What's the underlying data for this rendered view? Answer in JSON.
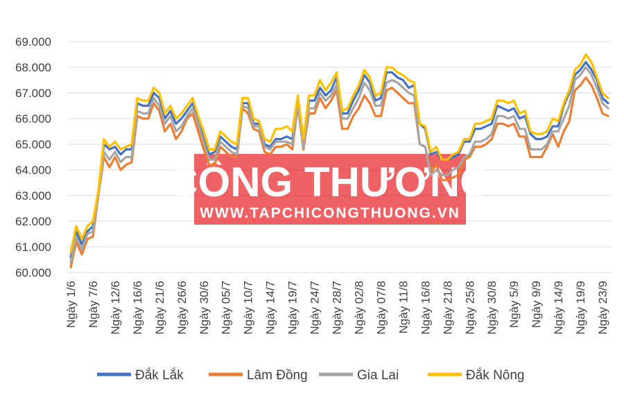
{
  "chart_data": {
    "type": "line",
    "title": "",
    "xlabel": "",
    "ylabel": "",
    "ylim": [
      60000,
      69000
    ],
    "y_ticks": [
      "60.000",
      "61.000",
      "62.000",
      "63.000",
      "64.000",
      "65.000",
      "66.000",
      "67.000",
      "68.000",
      "69.000"
    ],
    "y_tick_values": [
      60000,
      61000,
      62000,
      63000,
      64000,
      65000,
      66000,
      67000,
      68000,
      69000
    ],
    "x_tick_labels": [
      "Ngày 1/6",
      "Ngày 7/6",
      "Ngày 12/6",
      "Ngày 16/6",
      "Ngày 21/6",
      "Ngày 26/6",
      "Ngày 30/6",
      "Ngày 05/7",
      "Ngày 10/7",
      "Ngày 14/7",
      "Ngày 19/7",
      "Ngày 24/7",
      "Ngày 28/7",
      "Ngày 02/8",
      "Ngày 07/8",
      "Ngày 11/8",
      "Ngày 16/8",
      "Ngày 21/8",
      "Ngày 25/8",
      "Ngày 30/8",
      "Ngày 5/9",
      "Ngày 9/9",
      "Ngày 14/9",
      "Ngày 19/9",
      "Ngày 23/9"
    ],
    "x_tick_index": [
      0,
      4,
      8,
      12,
      16,
      20,
      24,
      28,
      32,
      36,
      40,
      44,
      48,
      52,
      56,
      60,
      64,
      68,
      72,
      76,
      80,
      84,
      88,
      92,
      96
    ],
    "grid": true,
    "legend_position": "bottom",
    "series": [
      {
        "name": "Đắk Lắk",
        "color": "#4472C4",
        "values": [
          60600,
          61600,
          61100,
          61600,
          61800,
          63100,
          65000,
          64800,
          64900,
          64600,
          64800,
          64800,
          66600,
          66500,
          66500,
          67000,
          66800,
          66000,
          66300,
          65800,
          66000,
          66300,
          66600,
          66000,
          65300,
          64600,
          64700,
          65300,
          65100,
          64900,
          64800,
          66600,
          66600,
          65800,
          65800,
          65000,
          64900,
          65200,
          65200,
          65300,
          65200,
          66600,
          65100,
          66700,
          66700,
          67200,
          66900,
          67100,
          67600,
          66200,
          66200,
          66700,
          67100,
          67700,
          67400,
          66700,
          66800,
          67800,
          67800,
          67600,
          67500,
          67200,
          67300,
          65800,
          65600,
          64600,
          64700,
          64400,
          64400,
          64500,
          64600,
          65100,
          65100,
          65600,
          65600,
          65700,
          65800,
          66500,
          66400,
          66300,
          66400,
          66000,
          66100,
          65400,
          65200,
          65200,
          65300,
          65700,
          65700,
          66500,
          67000,
          67700,
          67900,
          68200,
          67900,
          67500,
          66800,
          66600
        ]
      },
      {
        "name": "Lâm Đồng",
        "color": "#ED7D31",
        "values": [
          60200,
          61200,
          60700,
          61300,
          61400,
          63000,
          64500,
          64100,
          64500,
          64000,
          64200,
          64300,
          66100,
          66000,
          66000,
          66600,
          66300,
          65500,
          65800,
          65200,
          65500,
          66000,
          66200,
          65500,
          64800,
          64200,
          64200,
          64900,
          64700,
          64500,
          64500,
          66400,
          66200,
          65600,
          65500,
          64700,
          64600,
          64900,
          64900,
          65000,
          64800,
          66500,
          64800,
          66200,
          66200,
          66800,
          66400,
          66700,
          67100,
          65600,
          65600,
          66100,
          66400,
          66900,
          66600,
          66100,
          66100,
          67100,
          67200,
          67000,
          66800,
          66600,
          66600,
          65000,
          64900,
          63900,
          64200,
          63600,
          63600,
          63700,
          63800,
          64400,
          64500,
          64900,
          64900,
          65000,
          65200,
          65800,
          65800,
          65700,
          65800,
          65300,
          65300,
          64500,
          64500,
          64500,
          64900,
          65400,
          64900,
          65500,
          65900,
          67100,
          67300,
          67600,
          67300,
          66800,
          66200,
          66100
        ]
      },
      {
        "name": "Gia Lai",
        "color": "#A5A5A5",
        "values": [
          60400,
          61400,
          60900,
          61500,
          61600,
          63000,
          64700,
          64400,
          64700,
          64300,
          64500,
          64500,
          66300,
          66200,
          66200,
          66800,
          66500,
          65800,
          66100,
          65500,
          65700,
          66100,
          66400,
          65800,
          65100,
          64400,
          64400,
          65100,
          64900,
          64700,
          64600,
          66500,
          66400,
          65700,
          65700,
          64900,
          64800,
          65100,
          65100,
          65100,
          65000,
          66500,
          64900,
          66400,
          66400,
          67000,
          66700,
          66900,
          67300,
          66000,
          66000,
          66400,
          66800,
          67400,
          67100,
          66500,
          66500,
          67400,
          67500,
          67400,
          67200,
          67000,
          66900,
          65000,
          64900,
          63800,
          64000,
          63800,
          63800,
          64000,
          64100,
          64500,
          64600,
          65100,
          65100,
          65200,
          65400,
          66100,
          66100,
          66000,
          66100,
          65600,
          65600,
          64800,
          64800,
          64800,
          65000,
          65500,
          65500,
          66000,
          66500,
          67500,
          67700,
          68000,
          67700,
          67200,
          66600,
          66400
        ]
      },
      {
        "name": "Đắk Nông",
        "color": "#FFC000",
        "values": [
          60800,
          61800,
          61300,
          61800,
          62000,
          63200,
          65200,
          64900,
          65100,
          64800,
          64900,
          65000,
          66800,
          66700,
          66700,
          67200,
          67000,
          66200,
          66500,
          66000,
          66200,
          66500,
          66800,
          66100,
          65500,
          64800,
          64800,
          65500,
          65300,
          65100,
          65000,
          66800,
          66800,
          66000,
          65900,
          65200,
          65100,
          65600,
          65600,
          65700,
          65500,
          66900,
          65200,
          66900,
          66900,
          67500,
          67100,
          67400,
          67800,
          66300,
          66400,
          66900,
          67300,
          67900,
          67600,
          66900,
          67000,
          68000,
          68000,
          67800,
          67700,
          67500,
          67400,
          65800,
          65700,
          64700,
          64900,
          64400,
          64400,
          64600,
          64700,
          65200,
          65200,
          65800,
          65800,
          65900,
          66000,
          66700,
          66700,
          66600,
          66700,
          66200,
          66300,
          65500,
          65400,
          65400,
          65500,
          66000,
          65900,
          66600,
          67100,
          67900,
          68100,
          68500,
          68200,
          67600,
          67000,
          66800
        ]
      }
    ]
  },
  "watermark": {
    "title": "CÔNG THƯƠNG",
    "url": "WWW.TAPCHICONGTHUONG.VN"
  },
  "colors": {
    "grid": "#D9D9D9",
    "axis": "#BFBFBF",
    "watermark_red": "#E8262A"
  }
}
